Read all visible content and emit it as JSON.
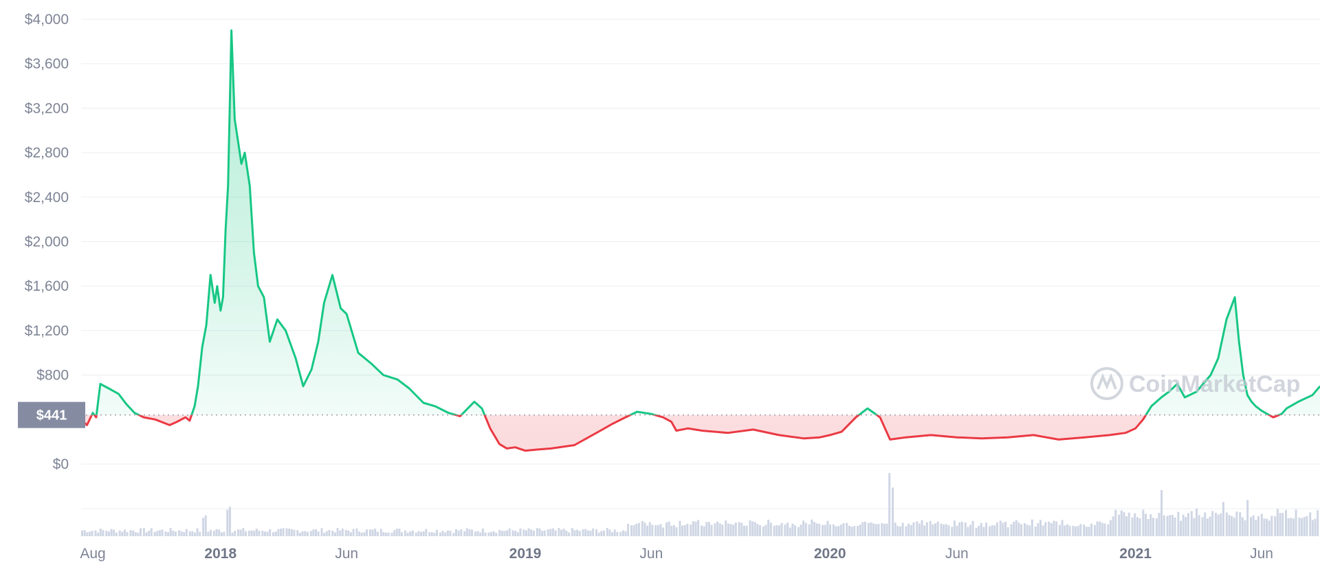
{
  "chart_data": {
    "type": "area",
    "title": "",
    "xlabel": "",
    "ylabel": "",
    "ylim": [
      0,
      4000
    ],
    "y_ticks": [
      "$4,000",
      "$3,600",
      "$3,200",
      "$2,800",
      "$2,400",
      "$2,000",
      "$1,600",
      "$1,200",
      "$800",
      "$441",
      "$0"
    ],
    "x_ticks": [
      {
        "label": "Aug",
        "date": "2017-08-01",
        "major": false
      },
      {
        "label": "2018",
        "date": "2018-01-01",
        "major": true
      },
      {
        "label": "Jun",
        "date": "2018-06-01",
        "major": false
      },
      {
        "label": "2019",
        "date": "2019-01-01",
        "major": true
      },
      {
        "label": "Jun",
        "date": "2019-06-01",
        "major": false
      },
      {
        "label": "2020",
        "date": "2020-01-01",
        "major": true
      },
      {
        "label": "Jun",
        "date": "2020-06-01",
        "major": false
      },
      {
        "label": "2021",
        "date": "2021-01-01",
        "major": true
      },
      {
        "label": "Jun",
        "date": "2021-06-01",
        "major": false
      }
    ],
    "reference_line": {
      "value": 441,
      "label": "$441"
    },
    "colors": {
      "above": "#16c784",
      "below": "#ea3943",
      "volume": "#cfd6e4",
      "grid": "#eef0f3",
      "badge": "#858ca2"
    },
    "watermark": "CoinMarketCap",
    "series": [
      {
        "x": [
          "2017-07-18",
          "2017-07-25",
          "2017-08-01",
          "2017-08-05",
          "2017-08-10",
          "2017-08-20",
          "2017-09-01",
          "2017-09-10",
          "2017-09-20",
          "2017-10-01",
          "2017-10-15",
          "2017-11-01",
          "2017-11-10",
          "2017-11-20",
          "2017-11-25",
          "2017-12-01",
          "2017-12-05",
          "2017-12-10",
          "2017-12-15",
          "2017-12-20",
          "2017-12-25",
          "2017-12-28",
          "2018-01-01",
          "2018-01-04",
          "2018-01-07",
          "2018-01-10",
          "2018-01-14",
          "2018-01-18",
          "2018-01-22",
          "2018-01-26",
          "2018-01-30",
          "2018-02-05",
          "2018-02-10",
          "2018-02-15",
          "2018-02-22",
          "2018-03-01",
          "2018-03-10",
          "2018-03-20",
          "2018-04-01",
          "2018-04-10",
          "2018-04-20",
          "2018-04-28",
          "2018-05-05",
          "2018-05-15",
          "2018-05-25",
          "2018-06-01",
          "2018-06-15",
          "2018-07-01",
          "2018-07-15",
          "2018-08-01",
          "2018-08-15",
          "2018-09-01",
          "2018-09-15",
          "2018-10-01",
          "2018-10-15",
          "2018-11-01",
          "2018-11-10",
          "2018-11-20",
          "2018-12-01",
          "2018-12-10",
          "2018-12-20",
          "2019-01-01",
          "2019-01-15",
          "2019-02-01",
          "2019-03-01",
          "2019-04-01",
          "2019-04-15",
          "2019-05-01",
          "2019-05-15",
          "2019-06-01",
          "2019-06-15",
          "2019-06-25",
          "2019-07-01",
          "2019-07-15",
          "2019-08-01",
          "2019-09-01",
          "2019-10-01",
          "2019-11-01",
          "2019-12-01",
          "2019-12-20",
          "2020-01-01",
          "2020-01-15",
          "2020-02-01",
          "2020-02-15",
          "2020-03-01",
          "2020-03-13",
          "2020-04-01",
          "2020-05-01",
          "2020-06-01",
          "2020-07-01",
          "2020-08-01",
          "2020-09-01",
          "2020-10-01",
          "2020-11-01",
          "2020-12-01",
          "2020-12-20",
          "2021-01-01",
          "2021-01-10",
          "2021-01-20",
          "2021-02-01",
          "2021-02-10",
          "2021-02-20",
          "2021-03-01",
          "2021-03-15",
          "2021-04-01",
          "2021-04-10",
          "2021-04-20",
          "2021-04-30",
          "2021-05-05",
          "2021-05-10",
          "2021-05-15",
          "2021-05-20",
          "2021-05-25",
          "2021-06-01",
          "2021-06-15",
          "2021-06-25",
          "2021-07-01",
          "2021-07-15",
          "2021-08-01",
          "2021-08-10"
        ],
        "y": [
          400,
          350,
          460,
          420,
          720,
          680,
          630,
          540,
          460,
          420,
          400,
          350,
          380,
          420,
          390,
          520,
          700,
          1050,
          1250,
          1700,
          1450,
          1600,
          1380,
          1500,
          2100,
          2500,
          3900,
          3100,
          2900,
          2700,
          2800,
          2500,
          1900,
          1600,
          1500,
          1100,
          1300,
          1200,
          950,
          700,
          850,
          1100,
          1450,
          1700,
          1400,
          1350,
          1000,
          900,
          800,
          760,
          680,
          550,
          520,
          460,
          430,
          560,
          500,
          320,
          180,
          140,
          150,
          120,
          130,
          140,
          170,
          300,
          360,
          420,
          470,
          450,
          420,
          380,
          300,
          320,
          300,
          280,
          310,
          260,
          230,
          240,
          260,
          290,
          420,
          500,
          420,
          220,
          240,
          260,
          240,
          230,
          240,
          260,
          220,
          240,
          260,
          280,
          320,
          400,
          520,
          600,
          650,
          720,
          600,
          650,
          800,
          950,
          1300,
          1500,
          1100,
          800,
          620,
          560,
          520,
          480,
          420,
          450,
          500,
          560,
          620,
          700
        ]
      }
    ],
    "volume_hint": "volume bars (relative)",
    "volume_peaks": [
      {
        "date": "2017-12-12",
        "rel": 0.35
      },
      {
        "date": "2018-01-10",
        "rel": 0.5
      },
      {
        "date": "2020-03-13",
        "rel": 1.0
      },
      {
        "date": "2021-02-01",
        "rel": 0.6
      },
      {
        "date": "2021-04-15",
        "rel": 0.5
      },
      {
        "date": "2021-05-15",
        "rel": 0.45
      }
    ]
  }
}
